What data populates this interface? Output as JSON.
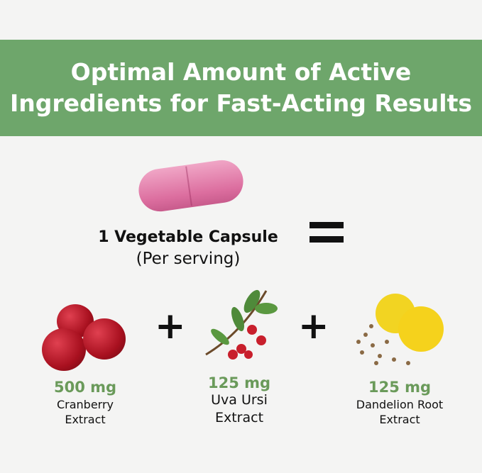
{
  "banner": {
    "line1": "Optimal Amount of Active",
    "line2": "Ingredients for Fast-Acting Results"
  },
  "capsule": {
    "label": "1 Vegetable Capsule",
    "sub": "(Per serving)"
  },
  "operators": {
    "plus": "+"
  },
  "ingredients": [
    {
      "amount": "500 mg",
      "name1": "Cranberry",
      "name2": "Extract",
      "icon": "cranberry-icon"
    },
    {
      "amount": "125 mg",
      "name1": "Uva Ursi",
      "name2": "Extract",
      "icon": "uva-ursi-icon"
    },
    {
      "amount": "125 mg",
      "name1": "Dandelion Root",
      "name2": "Extract",
      "icon": "dandelion-icon"
    }
  ],
  "colors": {
    "banner": "#6ea66b",
    "amount": "#6a9a5a"
  }
}
